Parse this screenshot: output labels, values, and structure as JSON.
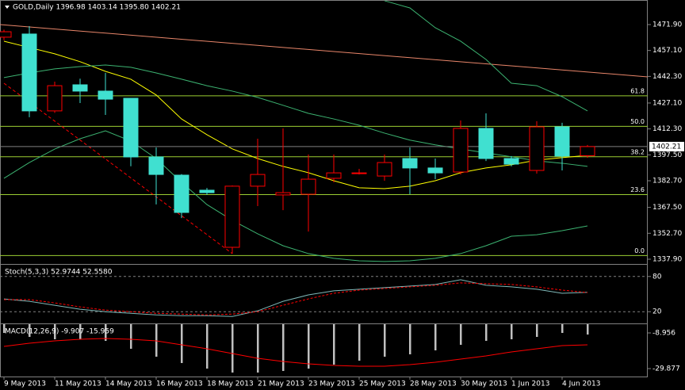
{
  "chart_data": [
    {
      "type": "candlestick",
      "title": "GOLD,Daily  1396.98 1403.14 1395.80 1402.21",
      "categories": [
        "9 May 2013",
        null,
        "11 May 2013",
        null,
        "14 May 2013",
        null,
        "16 May 2013",
        null,
        "18 May 2013",
        null,
        "21 May 2013",
        null,
        "23 May 2013",
        null,
        "25 May 2013",
        null,
        "28 May 2013",
        null,
        "30 May 2013",
        null,
        "1 Jun 2013",
        null,
        "4 Jun 2013",
        null
      ],
      "open": [
        1464.7,
        1466.5,
        1422.6,
        1437.5,
        1433.9,
        1429.8,
        1396.3,
        1385.9,
        1377.3,
        1344.7,
        1379.6,
        1374.6,
        1375.0,
        1384.1,
        1387.0,
        1385.4,
        1395.4,
        1390.0,
        1387.7,
        1412.6,
        1395.4,
        1388.6,
        1413.5,
        1396.98
      ],
      "high": [
        1469.0,
        1471.0,
        1439.3,
        1441.0,
        1444.3,
        1430.0,
        1401.7,
        1386.5,
        1378.6,
        1380.0,
        1406.7,
        1412.6,
        1397.7,
        1397.7,
        1389.5,
        1397.7,
        1401.7,
        1395.4,
        1417.1,
        1421.2,
        1396.8,
        1416.7,
        1415.8,
        1403.14
      ],
      "low": [
        1463.0,
        1419.0,
        1421.5,
        1427.1,
        1420.3,
        1391.0,
        1369.2,
        1361.4,
        1374.6,
        1341.1,
        1368.2,
        1365.9,
        1353.7,
        1381.8,
        1386.3,
        1382.7,
        1375.0,
        1383.6,
        1386.3,
        1394.0,
        1390.9,
        1386.8,
        1388.6,
        1395.8
      ],
      "close": [
        1467.8,
        1422.6,
        1437.0,
        1433.9,
        1429.3,
        1396.3,
        1386.3,
        1364.6,
        1375.9,
        1379.6,
        1386.3,
        1375.9,
        1383.6,
        1387.2,
        1387.2,
        1393.1,
        1390.0,
        1387.2,
        1412.6,
        1395.4,
        1392.2,
        1413.5,
        1396.8,
        1402.21
      ],
      "up_color": "#ff0000",
      "down_color": "#40e0d0",
      "bid_color": "#808080",
      "ylim": [
        1335.18,
        1485.93
      ],
      "yticks": [
        {
          "value": 1471.9,
          "label": "1471.90"
        },
        {
          "value": 1457.1,
          "label": "1457.10"
        },
        {
          "value": 1442.3,
          "label": "1442.30"
        },
        {
          "value": 1427.1,
          "label": "1427.10"
        },
        {
          "value": 1412.3,
          "label": "1412.30"
        },
        {
          "value": 1397.5,
          "label": "1397.50"
        },
        {
          "value": 1382.7,
          "label": "1382.70"
        },
        {
          "value": 1367.5,
          "label": "1367.50"
        },
        {
          "value": 1352.7,
          "label": "1352.70"
        },
        {
          "value": 1337.9,
          "label": "1337.90"
        }
      ],
      "series": [
        {
          "color": "#ffff00",
          "values": [
            1462.4,
            1458.8,
            1455.2,
            1450.7,
            1445.2,
            1440.7,
            1431.7,
            1418.0,
            1409.0,
            1400.9,
            1395.4,
            1390.9,
            1387.3,
            1382.7,
            1378.7,
            1378.2,
            1379.6,
            1382.7,
            1387.3,
            1390.0,
            1391.8,
            1394.5,
            1395.9,
            1397.2
          ]
        },
        {
          "color": "#3cb371",
          "values": [
            1441.6,
            1444.3,
            1446.6,
            1447.9,
            1448.8,
            1447.5,
            1444.3,
            1440.7,
            1437.0,
            1433.9,
            1430.3,
            1425.8,
            1421.2,
            1418.0,
            1414.4,
            1409.9,
            1405.9,
            1403.2,
            1400.9,
            1398.6,
            1396.4,
            1394.1,
            1392.7,
            1390.9
          ]
        },
        {
          "color": "#3cb371",
          "values": [
            null,
            null,
            null,
            null,
            null,
            null,
            null,
            null,
            null,
            null,
            null,
            null,
            null,
            null,
            null,
            1485.5,
            1481.4,
            1470.1,
            1462.4,
            1452.0,
            1438.4,
            1437.0,
            1430.7,
            1422.6
          ]
        },
        {
          "color": "#3cb371",
          "values": [
            1384.1,
            1393.1,
            1400.8,
            1406.7,
            1411.2,
            1405.4,
            1395.4,
            1381.8,
            1369.1,
            1360.1,
            1352.4,
            1345.6,
            1341.1,
            1338.4,
            1337.0,
            1336.6,
            1337.0,
            1338.4,
            1341.1,
            1345.6,
            1351.0,
            1351.9,
            1354.2,
            1356.9
          ]
        }
      ],
      "fib_color": "#9acd32",
      "fib_levels": [
        {
          "value": 1431.2,
          "label": "61.8"
        },
        {
          "value": 1413.8,
          "label": "50.0"
        },
        {
          "value": 1396.4,
          "label": "38.2"
        },
        {
          "value": 1374.8,
          "label": "23.6"
        },
        {
          "value": 1340.0,
          "label": "0.0"
        }
      ],
      "trendlines": [
        {
          "color": "#e9866a",
          "dashed": false,
          "ray": true,
          "points": [
            [
              0,
              1471.7
            ],
            [
              23,
              1444.8
            ]
          ]
        },
        {
          "color": "#ff0000",
          "dashed": true,
          "ray": false,
          "points": [
            [
              0,
              1438.4
            ],
            [
              9,
              1341.1
            ]
          ]
        }
      ]
    },
    {
      "type": "line",
      "title": "Stoch(5,3,3) 52.9744 52.5580",
      "ylim": [
        0,
        100
      ],
      "yticks": [
        80,
        20
      ],
      "grid": true,
      "series": [
        {
          "color": "#7fb8b8",
          "dashed": false,
          "values": [
            41.8,
            37.7,
            30.9,
            24.1,
            20.0,
            17.3,
            14.5,
            13.2,
            13.2,
            11.8,
            21.4,
            37.7,
            48.6,
            55.5,
            58.2,
            60.9,
            63.6,
            66.4,
            74.5,
            65.0,
            62.3,
            58.2,
            51.4,
            52.9744
          ]
        },
        {
          "color": "#ff0000",
          "dashed": true,
          "values": [
            40.5,
            40.5,
            35.0,
            28.2,
            22.7,
            20.0,
            17.3,
            15.9,
            14.5,
            15.9,
            20.0,
            30.9,
            41.8,
            51.4,
            56.8,
            59.5,
            62.3,
            65.0,
            69.1,
            67.7,
            66.4,
            62.3,
            56.8,
            52.558
          ]
        }
      ]
    },
    {
      "type": "macd",
      "title": "MACD(12,26,9) -9.907 -15.959",
      "ylim": [
        -35.0,
        -3.84
      ],
      "yticks": [
        -8.956,
        -29.877
      ],
      "series": [
        {
          "color": "#c0c0c0",
          "style": "bar",
          "values": [
            -8.96,
            -11.28,
            -12.67,
            -12.67,
            -13.6,
            -18.25,
            -22.9,
            -26.62,
            -29.88,
            -32.2,
            -32.2,
            -31.27,
            -29.88,
            -27.55,
            -25.23,
            -22.9,
            -21.51,
            -19.18,
            -15.93,
            -13.6,
            -12.67,
            -11.28,
            -8.96,
            -9.907
          ]
        },
        {
          "color": "#ff0000",
          "style": "line",
          "values": [
            -16.86,
            -15.0,
            -13.6,
            -12.67,
            -12.21,
            -12.67,
            -13.6,
            -15.93,
            -18.25,
            -21.04,
            -23.83,
            -25.69,
            -27.09,
            -28.02,
            -28.48,
            -28.48,
            -27.55,
            -26.16,
            -24.3,
            -22.44,
            -20.11,
            -18.25,
            -16.39,
            -15.959
          ]
        }
      ]
    }
  ]
}
